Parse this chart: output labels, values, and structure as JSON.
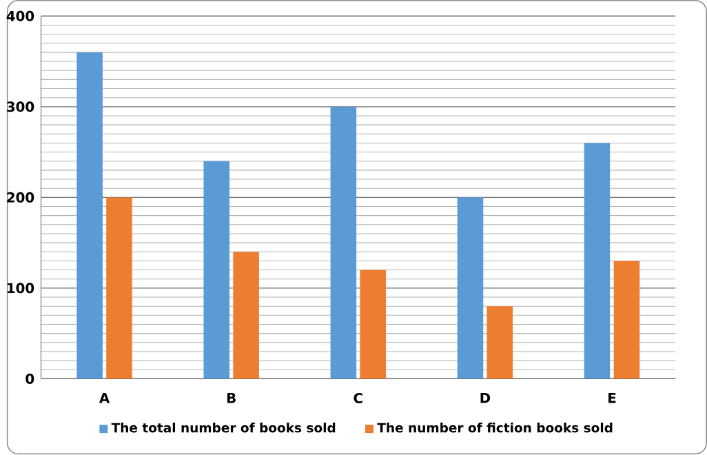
{
  "chart_data": {
    "type": "bar",
    "categories": [
      "A",
      "B",
      "C",
      "D",
      "E"
    ],
    "series": [
      {
        "name": "The total number of books sold",
        "color": "#5b9bd5",
        "values": [
          360,
          240,
          300,
          200,
          260
        ]
      },
      {
        "name": "The number of fiction books sold",
        "color": "#ed7d31",
        "values": [
          200,
          140,
          120,
          80,
          130
        ]
      }
    ],
    "ylim": [
      0,
      400
    ],
    "yticks": [
      0,
      {
        "value": 10,
        "label": null
      },
      {
        "value": 20,
        "label": null
      },
      {
        "value": 30,
        "label": null
      },
      {
        "value": 40,
        "label": null
      },
      {
        "value": 50,
        "label": null
      },
      {
        "value": 60,
        "label": null
      },
      {
        "value": 70,
        "label": null
      },
      {
        "value": 80,
        "label": null
      },
      {
        "value": 90,
        "label": null
      },
      100,
      {
        "value": 110,
        "label": null
      },
      {
        "value": 120,
        "label": null
      },
      {
        "value": 130,
        "label": null
      },
      {
        "value": 140,
        "label": null
      },
      {
        "value": 150,
        "label": null
      },
      {
        "value": 160,
        "label": null
      },
      {
        "value": 170,
        "label": null
      },
      {
        "value": 180,
        "label": null
      },
      {
        "value": 190,
        "label": null
      },
      200,
      {
        "value": 210,
        "label": null
      },
      {
        "value": 220,
        "label": null
      },
      {
        "value": 230,
        "label": null
      },
      {
        "value": 240,
        "label": null
      },
      {
        "value": 250,
        "label": null
      },
      {
        "value": 260,
        "label": null
      },
      {
        "value": 270,
        "label": null
      },
      {
        "value": 280,
        "label": null
      },
      {
        "value": 290,
        "label": null
      },
      300,
      {
        "value": 310,
        "label": null
      },
      {
        "value": 320,
        "label": null
      },
      {
        "value": 330,
        "label": null
      },
      {
        "value": 340,
        "label": null
      },
      {
        "value": 350,
        "label": null
      },
      {
        "value": 360,
        "label": null
      },
      {
        "value": 370,
        "label": null
      },
      {
        "value": 380,
        "label": null
      },
      {
        "value": 390,
        "label": null
      },
      400
    ],
    "grid": "y",
    "legend": "bottom"
  }
}
